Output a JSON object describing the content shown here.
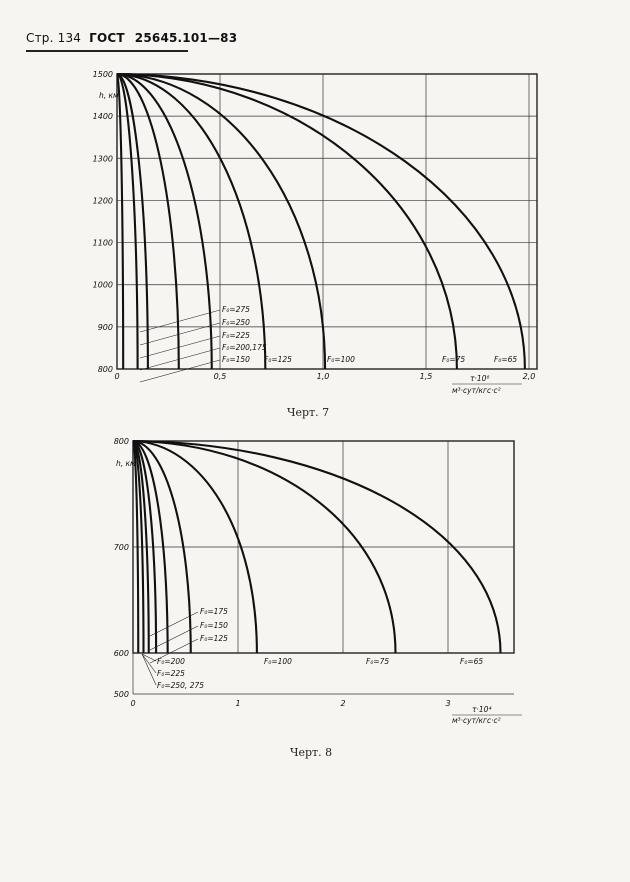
{
  "header": {
    "page_label": "Стр. 134",
    "standard": "ГОСТ",
    "standard_number": "25645.101—83"
  },
  "chart_data": [
    {
      "type": "line",
      "caption": "Черт. 7",
      "ylabel": "h, км",
      "xlabel_top": "τ·10⁶",
      "xlabel_bottom": "м³·сут/кгс·с²",
      "xlim": [
        0,
        2.0
      ],
      "ylim": [
        800,
        1500
      ],
      "x_ticks": [
        "0",
        "0,5",
        "1,0",
        "1,5",
        "2,0"
      ],
      "y_ticks": [
        "800",
        "900",
        "1000",
        "1100",
        "1200",
        "1300",
        "1400",
        "1500"
      ],
      "series": [
        {
          "name": "F₀=275",
          "end_x": 0.03
        },
        {
          "name": "F₀=250",
          "end_x": 0.1
        },
        {
          "name": "F₀=225",
          "end_x": 0.15
        },
        {
          "name": "F₀=200,175",
          "end_x": 0.3
        },
        {
          "name": "F₀=150",
          "end_x": 0.46
        },
        {
          "name": "F₀=125",
          "end_x": 0.72
        },
        {
          "name": "F₀=100",
          "end_x": 1.01
        },
        {
          "name": "F₀=75",
          "end_x": 1.65
        },
        {
          "name": "F₀=65",
          "end_x": 1.98
        }
      ]
    },
    {
      "type": "line",
      "caption": "Черт. 8",
      "ylabel": "h, км",
      "xlabel_top": "τ·10⁴",
      "xlabel_bottom": "м³·сут/кгс·с²",
      "xlim": [
        0,
        3.5
      ],
      "ylim": [
        600,
        800
      ],
      "x_ticks": [
        "0",
        "1",
        "2",
        "3"
      ],
      "y_ticks": [
        "500",
        "600",
        "700",
        "800"
      ],
      "series": [
        {
          "name": "F₀=250, 275",
          "end_x": 0.05
        },
        {
          "name": "F₀=225",
          "end_x": 0.1
        },
        {
          "name": "F₀=200",
          "end_x": 0.15
        },
        {
          "name": "F₀=175",
          "end_x": 0.22
        },
        {
          "name": "F₀=150",
          "end_x": 0.33
        },
        {
          "name": "F₀=125",
          "end_x": 0.55
        },
        {
          "name": "F₀=100",
          "end_x": 1.18
        },
        {
          "name": "F₀=75",
          "end_x": 2.5
        },
        {
          "name": "F₀=65",
          "end_x": 3.5
        }
      ]
    }
  ]
}
